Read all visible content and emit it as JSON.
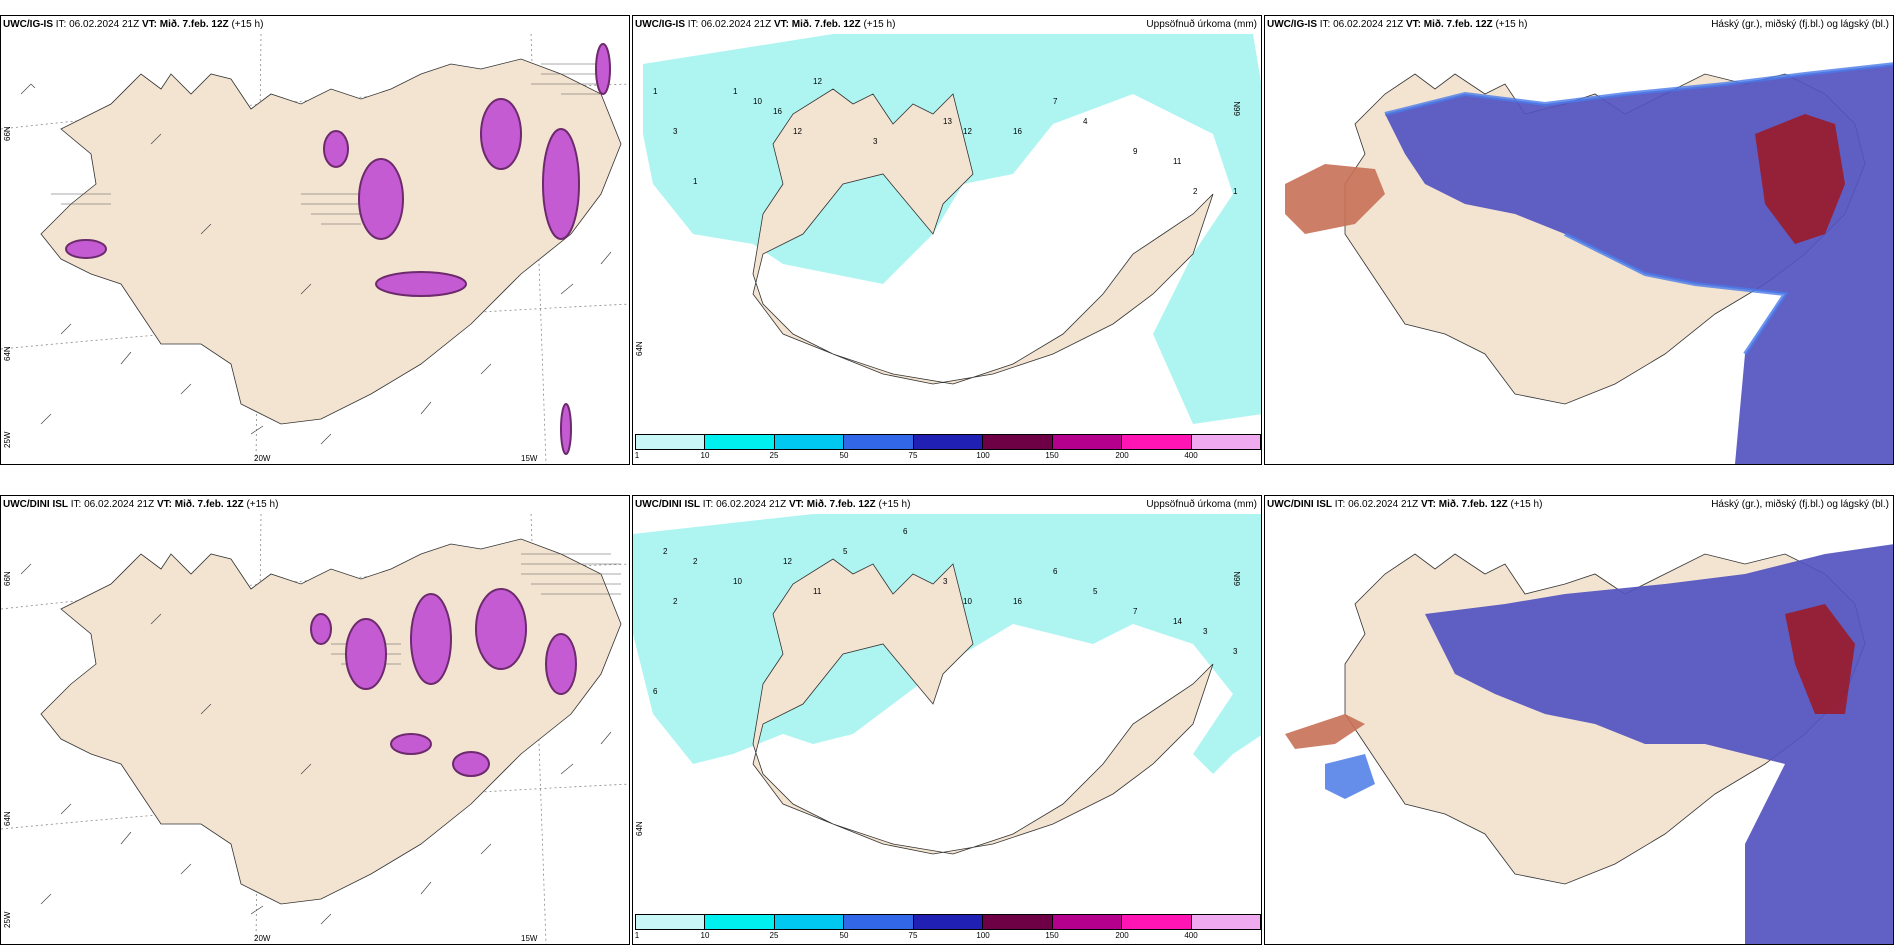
{
  "rows": [
    {
      "id": "top",
      "panels": [
        {
          "model": "UWC/IG-IS",
          "it_label": "IT:",
          "it_value": "06.02.2024 21Z",
          "vt_label": "VT:",
          "vt_value": "Mið. 7.feb. 12Z",
          "lead": "(+15 h)",
          "field": "",
          "lon_labels": [
            "20W",
            "15W"
          ],
          "lat_labels": [
            "66N",
            "64N",
            "25W"
          ]
        },
        {
          "model": "UWC/IG-IS",
          "it_label": "IT:",
          "it_value": "06.02.2024 21Z",
          "vt_label": "VT:",
          "vt_value": "Mið. 7.feb. 12Z",
          "lead": "(+15 h)",
          "field": "Uppsöfnuð úrkoma (mm)",
          "lat_labels": [
            "66N",
            "64N"
          ]
        },
        {
          "model": "UWC/IG-IS",
          "it_label": "IT:",
          "it_value": "06.02.2024 21Z",
          "vt_label": "VT:",
          "vt_value": "Mið. 7.feb. 12Z",
          "lead": "(+15 h)",
          "field": "Háský (gr.), miðský (fj.bl.) og lágský (bl.)"
        }
      ]
    },
    {
      "id": "bottom",
      "panels": [
        {
          "model": "UWC/DINI ISL",
          "it_label": "IT:",
          "it_value": "06.02.2024 21Z",
          "vt_label": "VT:",
          "vt_value": "Mið. 7.feb. 12Z",
          "lead": "(+15 h)",
          "field": "",
          "lon_labels": [
            "20W",
            "15W"
          ],
          "lat_labels": [
            "66N",
            "64N",
            "25W"
          ]
        },
        {
          "model": "UWC/DINI ISL",
          "it_label": "IT:",
          "it_value": "06.02.2024 21Z",
          "vt_label": "VT:",
          "vt_value": "Mið. 7.feb. 12Z",
          "lead": "(+15 h)",
          "field": "Uppsöfnuð úrkoma (mm)",
          "lat_labels": [
            "66N",
            "64N"
          ]
        },
        {
          "model": "UWC/DINI ISL",
          "it_label": "IT:",
          "it_value": "06.02.2024 21Z",
          "vt_label": "VT:",
          "vt_value": "Mið. 7.feb. 12Z",
          "lead": "(+15 h)",
          "field": "Háský (gr.), miðský (fj.bl.) og lágský (bl.)"
        }
      ]
    }
  ],
  "precip_colorbar": {
    "ticks": [
      "1",
      "10",
      "25",
      "50",
      "75",
      "100",
      "150",
      "200",
      "400"
    ],
    "colors": [
      "#c9f7f7",
      "#00f0f0",
      "#00c8f0",
      "#3268e8",
      "#2020b4",
      "#6e0046",
      "#b4008c",
      "#ff14b4",
      "#f0aaf0"
    ]
  },
  "colors": {
    "land": "#f3e4d2",
    "precip_light": "#aef5f2",
    "precip_mid": "#3ad8e8",
    "snow_purple": "#c45bd3",
    "snow_dark": "#6d2a6d",
    "cloud_high": "#9b1b2a",
    "cloud_mid": "#5352c0",
    "cloud_low": "#4a7ae8"
  }
}
